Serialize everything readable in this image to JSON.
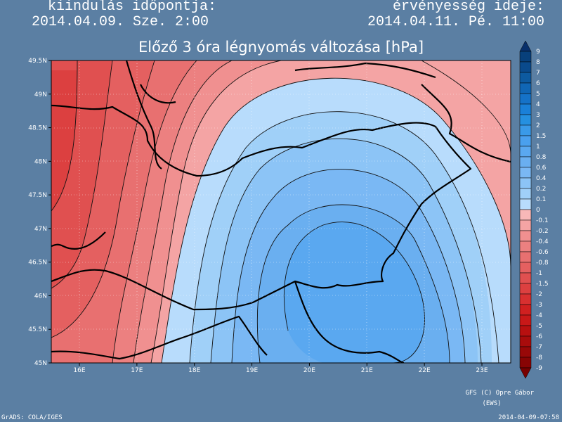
{
  "header": {
    "left_label": "kiindulás időpontja:",
    "left_value": "2014.04.09. Sze. 2:00",
    "right_label": "érvényesség ideje:",
    "right_value": "2014.04.11. Pé. 11:00"
  },
  "title": "Előző 3 óra légnyomás változása [hPa]",
  "lat_labels": [
    "49.5N",
    "49N",
    "48.5N",
    "48N",
    "47.5N",
    "47N",
    "46.5N",
    "46N",
    "45.5N",
    "45N"
  ],
  "lon_labels": [
    "16E",
    "17E",
    "18E",
    "19E",
    "20E",
    "21E",
    "22E",
    "23E"
  ],
  "colorbar": {
    "levels": [
      9,
      8,
      7,
      6,
      5,
      4,
      3,
      2,
      1.5,
      1,
      0.8,
      0.6,
      0.4,
      0.2,
      0.1,
      0,
      -0.1,
      -0.2,
      -0.4,
      -0.6,
      -0.8,
      -1,
      -1.5,
      -2,
      -3,
      -4,
      -5,
      -6,
      -7,
      -8,
      -9
    ],
    "colors": [
      "#08306b",
      "#08407b",
      "#0a4a8c",
      "#0d5aa0",
      "#1066b5",
      "#1572c8",
      "#1a80d8",
      "#2590e0",
      "#3a9ae8",
      "#4aa0ee",
      "#5aa8f0",
      "#6aaff0",
      "#7ab8f4",
      "#8cc4f6",
      "#a0d0f8",
      "#b8dcfc",
      "#f8b8b8",
      "#f4a4a4",
      "#f09090",
      "#ec8080",
      "#e87070",
      "#e46060",
      "#e05050",
      "#dc4040",
      "#d83030",
      "#d02020",
      "#c81818",
      "#b81010",
      "#a80c0c",
      "#980808",
      "#880404",
      "#780000"
    ]
  },
  "footer": {
    "credit": "GFS (C) Opre Gábor",
    "credit_sub": "(EWS)",
    "software": "GrADS: COLA/IGES",
    "timestamp": "2014-04-09-07:58"
  }
}
